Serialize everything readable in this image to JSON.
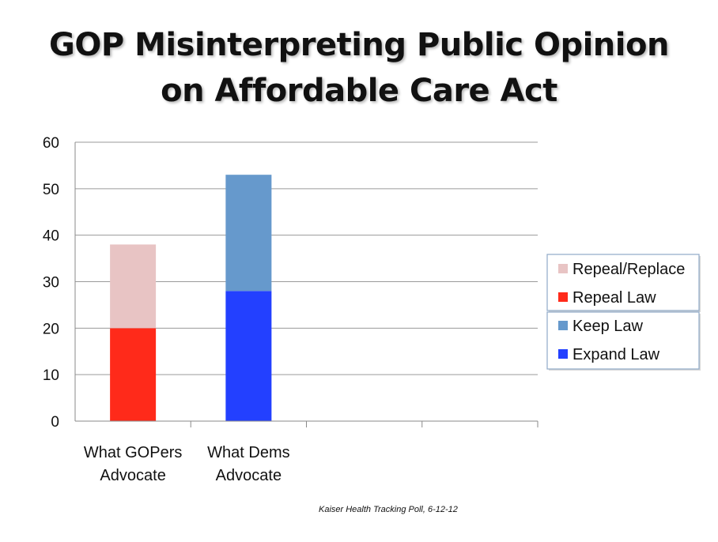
{
  "chart_data": {
    "type": "bar",
    "stacked": true,
    "title_lines": [
      "GOP Misinterpreting Public Opinion",
      "on Affordable Care Act"
    ],
    "categories": [
      {
        "line1": "What GOPers",
        "line2": "Advocate"
      },
      {
        "line1": "What Dems",
        "line2": "Advocate"
      },
      {
        "line1": "",
        "line2": ""
      },
      {
        "line1": "",
        "line2": ""
      }
    ],
    "ylim": [
      0,
      60
    ],
    "yticks": [
      0,
      10,
      20,
      30,
      40,
      50,
      60
    ],
    "grid": true,
    "legend_position": "right",
    "series": [
      {
        "name": "Repeal Law",
        "color": "#ff2a1a",
        "values": [
          20,
          0,
          null,
          null
        ]
      },
      {
        "name": "Repeal/Replace",
        "color": "#e8c4c4",
        "values": [
          18,
          0,
          null,
          null
        ]
      },
      {
        "name": "Expand Law",
        "color": "#2340ff",
        "values": [
          0,
          28,
          null,
          null
        ]
      },
      {
        "name": "Keep Law",
        "color": "#6699cc",
        "values": [
          0,
          25,
          null,
          null
        ]
      }
    ],
    "legend_order": [
      "Repeal/Replace",
      "Repeal Law",
      "Keep Law",
      "Expand Law"
    ],
    "source": "Kaiser Health Tracking Poll, 6-12-12"
  }
}
